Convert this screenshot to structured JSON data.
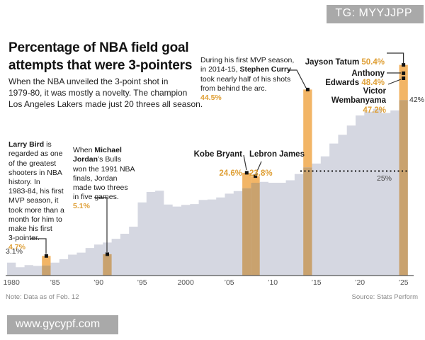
{
  "watermarks": {
    "top": "TG: MYYJJPP",
    "bottom": "www.gycypf.com"
  },
  "header": {
    "title": "Percentage of NBA field goal\nattempts that were 3-pointers",
    "subtitle": "When the NBA unveiled the 3-point shot in\n1979-80, it was mostly a novelty. The champion\nLos Angeles Lakers made just 20 threes all season."
  },
  "annotations": {
    "bird": {
      "bold": "Larry Bird",
      "text": " is\nregarded as one\nof the greatest\nshooters in NBA\nhistory. In\n1983-84, his first\nMVP season, it\ntook more than a\nmonth for him to\nmake his first\n3-pointer.",
      "value": "4.7%"
    },
    "jordan": {
      "pre": "When ",
      "bold": "Michael\nJordan",
      "text": "’s Bulls\nwon the 1991 NBA\nfinals, Jordan\nmade two threes\nin five games.",
      "value": "5.1%"
    },
    "curry": {
      "pre": "During his first MVP season,\nin 2014-15, ",
      "bold": "Stephen Curry",
      "text": "\ntook nearly half of his shots\nfrom behind the arc.",
      "value": "44.5%"
    },
    "kobe": {
      "name": "Kobe Bryant",
      "value": "24.6%"
    },
    "lebron": {
      "name": "Lebron James",
      "value": "23.8%"
    },
    "tatum": {
      "name": "Jayson Tatum ",
      "value": "50.4%"
    },
    "edwards": {
      "name": "Anthony\nEdwards ",
      "value": "48.4%"
    },
    "wembanyama": {
      "name": "Victor\nWembanyama\n",
      "value": "47.2%"
    }
  },
  "footer": {
    "note": "Note: Data as of Feb. 12",
    "source": "Source: Stats Perform"
  },
  "chart_data": {
    "type": "area",
    "title": "Percentage of NBA field goal attempts that were 3-pointers",
    "unit": "percent of field goal attempts",
    "x_start_season": "1979-80",
    "x_end_season": "2024-25",
    "ylim": [
      0,
      52
    ],
    "values": [
      3.1,
      2.0,
      2.5,
      2.3,
      2.4,
      3.1,
      3.9,
      5.0,
      5.5,
      6.6,
      7.4,
      7.9,
      8.8,
      10.0,
      11.7,
      17.5,
      20.0,
      20.3,
      17.0,
      16.5,
      16.9,
      17.1,
      18.1,
      18.2,
      18.7,
      19.6,
      20.2,
      20.9,
      22.2,
      22.4,
      22.2,
      22.2,
      22.8,
      24.3,
      25.9,
      26.8,
      28.5,
      31.6,
      33.7,
      35.9,
      38.3,
      39.2,
      39.9,
      38.9,
      39.5,
      42.0
    ],
    "x_ticks": [
      {
        "label": "1980",
        "year": 1980
      },
      {
        "label": "’85",
        "year": 1985
      },
      {
        "label": "’90",
        "year": 1990
      },
      {
        "label": "’95",
        "year": 1995
      },
      {
        "label": "2000",
        "year": 2000
      },
      {
        "label": "’05",
        "year": 2005
      },
      {
        "label": "’10",
        "year": 2010
      },
      {
        "label": "’15",
        "year": 2015
      },
      {
        "label": "’20",
        "year": 2020
      },
      {
        "label": "’25",
        "year": 2025
      }
    ],
    "highlights": [
      {
        "player": "Larry Bird",
        "pct": 4.7,
        "season_index": 4
      },
      {
        "player": "Michael Jordan",
        "pct": 5.1,
        "season_index": 11
      },
      {
        "player": "Kobe Bryant",
        "pct": 24.6,
        "season_index": 27
      },
      {
        "player": "Lebron James",
        "pct": 23.8,
        "season_index": 28
      },
      {
        "player": "Stephen Curry",
        "pct": 44.5,
        "season_index": 34
      },
      {
        "player": "Jayson Tatum",
        "pct": 50.4,
        "season_index": 45,
        "extra_markers": [
          {
            "player": "Anthony Edwards",
            "pct": 48.4
          },
          {
            "player": "Victor Wembanyama",
            "pct": 47.2
          }
        ]
      }
    ],
    "ref_line": {
      "value": 25,
      "label": "25%"
    },
    "point_labels": {
      "first": "3.1%",
      "last": "42%"
    },
    "legend": "none",
    "grid": "off",
    "colors": {
      "area": "#d5d7e1",
      "bar_bright": "#f2b566",
      "bar_dark": "#c9a26e",
      "accent_text": "#df9f35",
      "marker": "#111111"
    }
  }
}
